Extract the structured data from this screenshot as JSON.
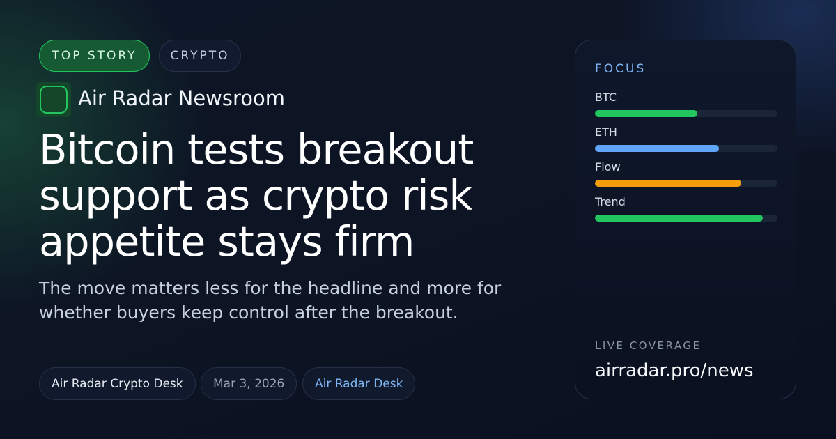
{
  "tags": {
    "top": "TOP STORY",
    "category": "CRYPTO"
  },
  "brand": {
    "name": "Air Radar Newsroom",
    "accent": "#22c55e"
  },
  "headline": "Bitcoin tests breakout support as crypto risk appetite stays firm",
  "subheadline": "The move matters less for the headline and more for whether buyers keep control after the breakout.",
  "meta": {
    "author": "Air Radar Crypto Desk",
    "date": "Mar 3, 2026",
    "desk": "Air Radar Desk"
  },
  "panel": {
    "title": "FOCUS",
    "bars": [
      {
        "label": "BTC",
        "percent": 56,
        "color": "#22c55e"
      },
      {
        "label": "ETH",
        "percent": 68,
        "color": "#60a5fa"
      },
      {
        "label": "Flow",
        "percent": 80,
        "color": "#f59e0b"
      },
      {
        "label": "Trend",
        "percent": 92,
        "color": "#22c55e"
      }
    ],
    "live_label": "LIVE COVERAGE",
    "url": "airradar.pro/news"
  }
}
